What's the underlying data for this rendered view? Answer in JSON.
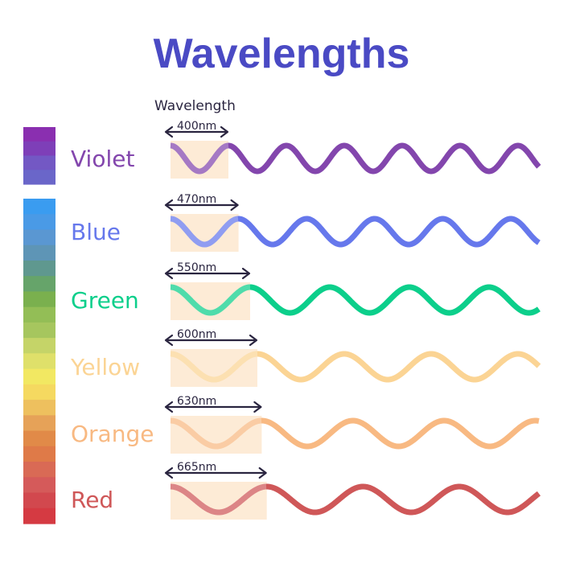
{
  "title": "Wavelengths",
  "title_color": "#4a4ac4",
  "text_color": "#2a2540",
  "header_label": "Wavelength",
  "highlight_color": "#fdebd6",
  "waves": [
    {
      "name": "Violet",
      "wavelength_label": "400nm",
      "wavelength_nm": 400,
      "color": "#8346ad"
    },
    {
      "name": "Blue",
      "wavelength_label": "470nm",
      "wavelength_nm": 470,
      "color": "#6678ec"
    },
    {
      "name": "Green",
      "wavelength_label": "550nm",
      "wavelength_nm": 550,
      "color": "#0ccf8b"
    },
    {
      "name": "Yellow",
      "wavelength_label": "600nm",
      "wavelength_nm": 600,
      "color": "#fbd494"
    },
    {
      "name": "Orange",
      "wavelength_label": "630nm",
      "wavelength_nm": 630,
      "color": "#f8b982"
    },
    {
      "name": "Red",
      "wavelength_label": "665nm",
      "wavelength_nm": 665,
      "color": "#cf5758"
    }
  ],
  "spectrum_bar": {
    "violet_segment": [
      "#8a2fb0",
      "#7e3fb8",
      "#7358c4",
      "#6a66c9"
    ],
    "main_segment": [
      "#3a9cf0",
      "#4a9ae6",
      "#5a97d2",
      "#5e95b6",
      "#5f988f",
      "#66a46a",
      "#7ab04e",
      "#93be56",
      "#a6c65e",
      "#c5d468",
      "#dfe06a",
      "#f2e862",
      "#f5d960",
      "#eec05e",
      "#e6a258",
      "#e18a48",
      "#df7a48",
      "#d96a55",
      "#d55a5a",
      "#d2484e",
      "#d53a42"
    ]
  }
}
